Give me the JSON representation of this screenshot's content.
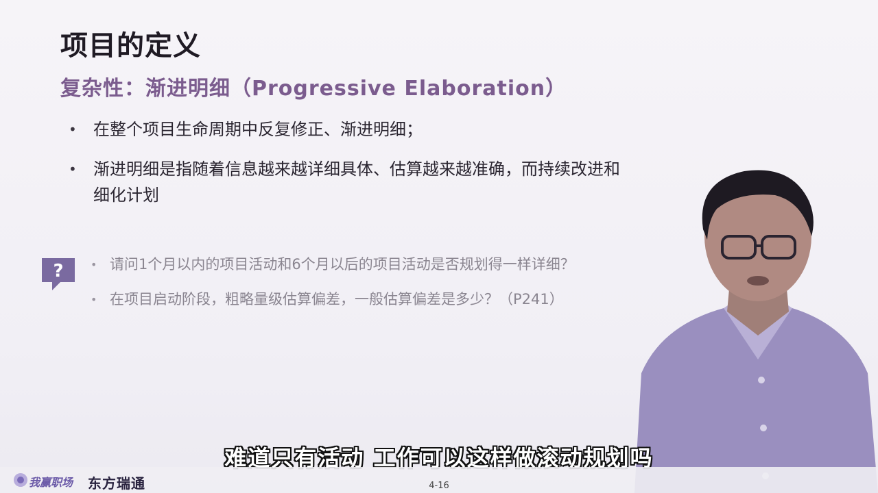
{
  "slide": {
    "title": "项目的定义",
    "subtitle": "复杂性：渐进明细（Progressive Elaboration）",
    "bullets": [
      "在整个项目生命周期中反复修正、渐进明细；",
      "渐进明细是指随着信息越来越详细具体、估算越来越准确，而持续改进和细化计划"
    ],
    "bullet_marker": "•",
    "questions": [
      "请问1个月以内的项目活动和6个月以后的项目活动是否规划得一样详细？",
      "在项目启动阶段，粗略量级估算偏差，一般估算偏差是多少？（P241）"
    ],
    "question_marker": "•",
    "question_icon": "question-bubble-icon",
    "page_number": "4-16"
  },
  "caption": "难道只有活动 工作可以这样做滚动规划吗",
  "footer": {
    "logo_left": "我赢职场",
    "logo_right": "东方瑞通"
  },
  "colors": {
    "title": "#1f1a24",
    "subtitle": "#7b5c8e",
    "question_icon": "#7a6aa0",
    "question_text": "#8a8590"
  }
}
